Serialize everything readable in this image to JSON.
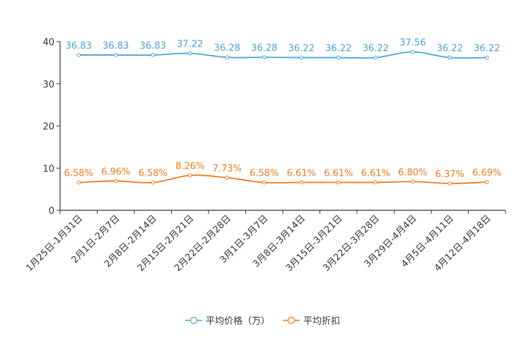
{
  "chart_data": {
    "type": "line",
    "categories": [
      "1月25日-1月31日",
      "2月1日-2月7日",
      "2月8日-2月14日",
      "2月15日-2月21日",
      "2月22日-2月28日",
      "3月1日-3月7日",
      "3月8日-3月14日",
      "3月15日-3月21日",
      "3月22日-3月28日",
      "3月29日-4月4日",
      "4月5日-4月11日",
      "4月12日-4月18日"
    ],
    "ylim": [
      0,
      40
    ],
    "yticks": [
      0,
      10,
      20,
      30,
      40
    ],
    "grid": false,
    "legend_position": "bottom-center",
    "series": [
      {
        "name": "平均价格（万）",
        "color": "#4aa3d4",
        "values": [
          36.83,
          36.83,
          36.83,
          37.22,
          36.28,
          36.28,
          36.22,
          36.22,
          36.22,
          37.56,
          36.22,
          36.22
        ],
        "labels": [
          "36.83",
          "36.83",
          "36.83",
          "37.22",
          "36.28",
          "36.28",
          "36.22",
          "36.22",
          "36.22",
          "37.56",
          "36.22",
          "36.22"
        ]
      },
      {
        "name": "平均折扣",
        "color": "#f07a1a",
        "values": [
          6.58,
          6.96,
          6.58,
          8.26,
          7.73,
          6.58,
          6.61,
          6.61,
          6.61,
          6.8,
          6.37,
          6.69
        ],
        "labels": [
          "6.58%",
          "6.96%",
          "6.58%",
          "8.26%",
          "7.73%",
          "6.58%",
          "6.61%",
          "6.61%",
          "6.61%",
          "6.80%",
          "6.37%",
          "6.69%"
        ]
      }
    ]
  }
}
